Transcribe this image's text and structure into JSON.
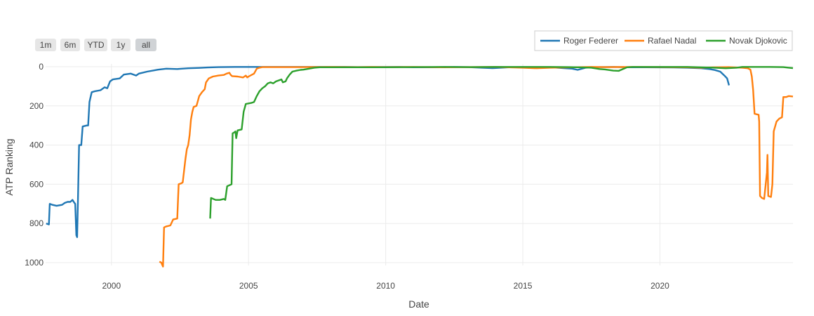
{
  "chart_data": {
    "type": "line",
    "xlabel": "Date",
    "ylabel": "ATP Ranking",
    "x_range": [
      1997.6,
      2024.85
    ],
    "ylim": [
      1000,
      0
    ],
    "y_reversed": true,
    "x_ticks": [
      2000,
      2005,
      2010,
      2015,
      2020
    ],
    "y_ticks": [
      0,
      200,
      400,
      600,
      800,
      1000
    ],
    "grid": true,
    "legend_position": "top-right",
    "range_selector": [
      "1m",
      "6m",
      "YTD",
      "1y",
      "all"
    ],
    "active_range": "all",
    "series": [
      {
        "name": "Roger Federer",
        "color": "#1f77b4",
        "points": [
          [
            1997.62,
            800
          ],
          [
            1997.72,
            805
          ],
          [
            1997.75,
            700
          ],
          [
            1997.85,
            705
          ],
          [
            1998.0,
            710
          ],
          [
            1998.2,
            705
          ],
          [
            1998.3,
            695
          ],
          [
            1998.4,
            690
          ],
          [
            1998.5,
            690
          ],
          [
            1998.58,
            680
          ],
          [
            1998.65,
            695
          ],
          [
            1998.68,
            700
          ],
          [
            1998.72,
            860
          ],
          [
            1998.75,
            870
          ],
          [
            1998.78,
            680
          ],
          [
            1998.82,
            400
          ],
          [
            1998.9,
            400
          ],
          [
            1998.95,
            305
          ],
          [
            1999.1,
            300
          ],
          [
            1999.15,
            300
          ],
          [
            1999.2,
            180
          ],
          [
            1999.28,
            130
          ],
          [
            1999.4,
            125
          ],
          [
            1999.6,
            120
          ],
          [
            1999.75,
            105
          ],
          [
            1999.85,
            110
          ],
          [
            1999.95,
            75
          ],
          [
            2000.05,
            65
          ],
          [
            2000.3,
            60
          ],
          [
            2000.45,
            40
          ],
          [
            2000.7,
            35
          ],
          [
            2000.9,
            45
          ],
          [
            2001.0,
            35
          ],
          [
            2001.3,
            25
          ],
          [
            2001.7,
            15
          ],
          [
            2002.0,
            10
          ],
          [
            2002.4,
            12
          ],
          [
            2002.8,
            8
          ],
          [
            2003.2,
            6
          ],
          [
            2003.5,
            4
          ],
          [
            2003.9,
            2
          ],
          [
            2004.5,
            1
          ],
          [
            2008.5,
            1
          ],
          [
            2009.0,
            2
          ],
          [
            2010.5,
            1
          ],
          [
            2011.0,
            3
          ],
          [
            2011.8,
            3
          ],
          [
            2012.5,
            1
          ],
          [
            2013.0,
            2
          ],
          [
            2013.5,
            5
          ],
          [
            2013.9,
            7
          ],
          [
            2014.5,
            3
          ],
          [
            2015.0,
            2
          ],
          [
            2016.0,
            3
          ],
          [
            2016.8,
            10
          ],
          [
            2017.0,
            16
          ],
          [
            2017.3,
            5
          ],
          [
            2017.8,
            2
          ],
          [
            2018.3,
            1
          ],
          [
            2018.8,
            3
          ],
          [
            2019.5,
            3
          ],
          [
            2020.5,
            4
          ],
          [
            2021.0,
            5
          ],
          [
            2021.5,
            8
          ],
          [
            2021.8,
            12
          ],
          [
            2022.0,
            17
          ],
          [
            2022.2,
            25
          ],
          [
            2022.35,
            45
          ],
          [
            2022.45,
            60
          ],
          [
            2022.52,
            95
          ]
        ]
      },
      {
        "name": "Rafael Nadal",
        "color": "#ff7f0e",
        "points": [
          [
            2001.75,
            995
          ],
          [
            2001.82,
            1000
          ],
          [
            2001.88,
            1020
          ],
          [
            2001.92,
            820
          ],
          [
            2002.0,
            815
          ],
          [
            2002.15,
            810
          ],
          [
            2002.25,
            780
          ],
          [
            2002.4,
            775
          ],
          [
            2002.45,
            600
          ],
          [
            2002.55,
            595
          ],
          [
            2002.6,
            590
          ],
          [
            2002.7,
            470
          ],
          [
            2002.75,
            420
          ],
          [
            2002.8,
            400
          ],
          [
            2002.85,
            350
          ],
          [
            2002.9,
            270
          ],
          [
            2002.95,
            230
          ],
          [
            2003.0,
            205
          ],
          [
            2003.1,
            200
          ],
          [
            2003.2,
            150
          ],
          [
            2003.3,
            130
          ],
          [
            2003.4,
            115
          ],
          [
            2003.45,
            80
          ],
          [
            2003.55,
            60
          ],
          [
            2003.7,
            50
          ],
          [
            2003.9,
            45
          ],
          [
            2004.1,
            42
          ],
          [
            2004.2,
            35
          ],
          [
            2004.3,
            31
          ],
          [
            2004.35,
            42
          ],
          [
            2004.4,
            48
          ],
          [
            2004.6,
            50
          ],
          [
            2004.8,
            55
          ],
          [
            2004.9,
            45
          ],
          [
            2004.95,
            55
          ],
          [
            2005.0,
            50
          ],
          [
            2005.2,
            35
          ],
          [
            2005.3,
            10
          ],
          [
            2005.4,
            5
          ],
          [
            2005.5,
            2
          ],
          [
            2006.0,
            2
          ],
          [
            2007.0,
            2
          ],
          [
            2008.0,
            1
          ],
          [
            2009.0,
            2
          ],
          [
            2009.5,
            1
          ],
          [
            2010.0,
            2
          ],
          [
            2011.0,
            1
          ],
          [
            2012.0,
            3
          ],
          [
            2013.0,
            2
          ],
          [
            2014.0,
            1
          ],
          [
            2015.0,
            5
          ],
          [
            2015.5,
            8
          ],
          [
            2016.0,
            5
          ],
          [
            2016.8,
            3
          ],
          [
            2017.5,
            1
          ],
          [
            2018.0,
            2
          ],
          [
            2019.0,
            1
          ],
          [
            2020.0,
            2
          ],
          [
            2021.0,
            3
          ],
          [
            2021.5,
            5
          ],
          [
            2022.0,
            3
          ],
          [
            2022.5,
            2
          ],
          [
            2023.0,
            5
          ],
          [
            2023.2,
            8
          ],
          [
            2023.3,
            15
          ],
          [
            2023.35,
            50
          ],
          [
            2023.4,
            120
          ],
          [
            2023.45,
            240
          ],
          [
            2023.6,
            245
          ],
          [
            2023.62,
            280
          ],
          [
            2023.65,
            660
          ],
          [
            2023.72,
            670
          ],
          [
            2023.8,
            675
          ],
          [
            2023.9,
            540
          ],
          [
            2023.92,
            450
          ],
          [
            2023.95,
            660
          ],
          [
            2024.05,
            665
          ],
          [
            2024.1,
            600
          ],
          [
            2024.15,
            330
          ],
          [
            2024.25,
            280
          ],
          [
            2024.35,
            265
          ],
          [
            2024.45,
            258
          ],
          [
            2024.5,
            155
          ],
          [
            2024.6,
            155
          ],
          [
            2024.7,
            150
          ],
          [
            2024.85,
            152
          ]
        ]
      },
      {
        "name": "Novak Djokovic",
        "color": "#2ca02c",
        "points": [
          [
            2003.6,
            775
          ],
          [
            2003.63,
            670
          ],
          [
            2003.8,
            680
          ],
          [
            2003.95,
            680
          ],
          [
            2004.1,
            675
          ],
          [
            2004.15,
            680
          ],
          [
            2004.22,
            610
          ],
          [
            2004.3,
            605
          ],
          [
            2004.38,
            600
          ],
          [
            2004.42,
            340
          ],
          [
            2004.48,
            335
          ],
          [
            2004.52,
            330
          ],
          [
            2004.55,
            365
          ],
          [
            2004.6,
            325
          ],
          [
            2004.75,
            320
          ],
          [
            2004.82,
            230
          ],
          [
            2004.9,
            190
          ],
          [
            2005.1,
            185
          ],
          [
            2005.2,
            180
          ],
          [
            2005.3,
            150
          ],
          [
            2005.4,
            125
          ],
          [
            2005.5,
            110
          ],
          [
            2005.6,
            100
          ],
          [
            2005.7,
            85
          ],
          [
            2005.8,
            80
          ],
          [
            2005.9,
            85
          ],
          [
            2006.0,
            75
          ],
          [
            2006.1,
            70
          ],
          [
            2006.2,
            65
          ],
          [
            2006.25,
            80
          ],
          [
            2006.35,
            75
          ],
          [
            2006.4,
            60
          ],
          [
            2006.5,
            40
          ],
          [
            2006.6,
            25
          ],
          [
            2006.75,
            20
          ],
          [
            2006.9,
            16
          ],
          [
            2007.0,
            15
          ],
          [
            2007.2,
            10
          ],
          [
            2007.4,
            5
          ],
          [
            2007.6,
            3
          ],
          [
            2008.0,
            3
          ],
          [
            2009.0,
            3
          ],
          [
            2010.0,
            3
          ],
          [
            2011.0,
            2
          ],
          [
            2012.0,
            1
          ],
          [
            2013.0,
            2
          ],
          [
            2014.0,
            1
          ],
          [
            2015.0,
            1
          ],
          [
            2016.0,
            1
          ],
          [
            2016.7,
            2
          ],
          [
            2017.0,
            3
          ],
          [
            2017.5,
            5
          ],
          [
            2017.8,
            12
          ],
          [
            2018.0,
            14
          ],
          [
            2018.3,
            20
          ],
          [
            2018.5,
            21
          ],
          [
            2018.8,
            3
          ],
          [
            2019.0,
            1
          ],
          [
            2020.0,
            1
          ],
          [
            2021.0,
            1
          ],
          [
            2022.0,
            5
          ],
          [
            2022.4,
            8
          ],
          [
            2022.8,
            5
          ],
          [
            2023.0,
            1
          ],
          [
            2024.0,
            1
          ],
          [
            2024.5,
            2
          ],
          [
            2024.7,
            5
          ],
          [
            2024.85,
            7
          ]
        ]
      }
    ]
  }
}
